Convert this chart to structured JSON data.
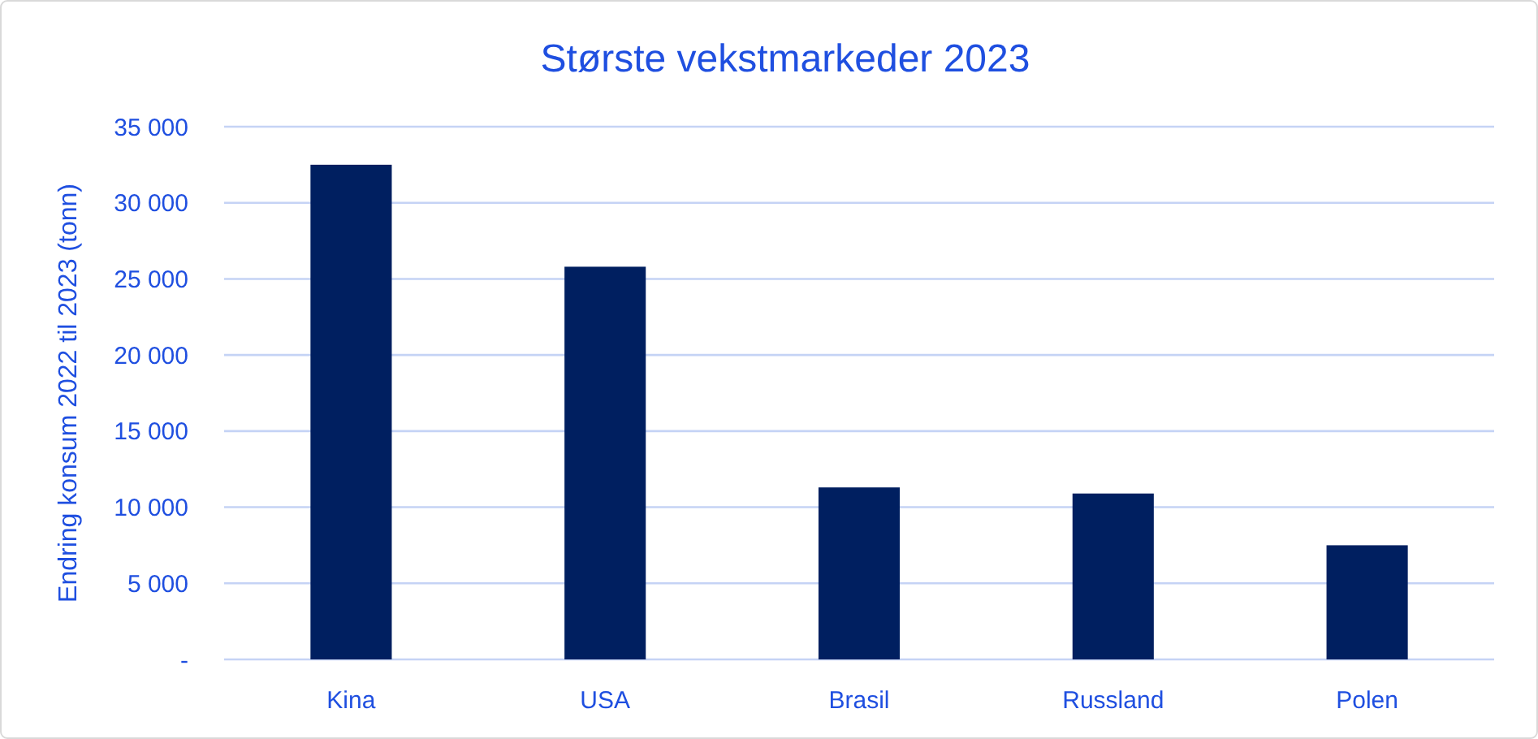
{
  "chart_data": {
    "type": "bar",
    "title": "Største vekstmarkeder 2023",
    "ylabel": "Endring konsum 2022 til 2023 (tonn)",
    "categories": [
      "Kina",
      "USA",
      "Brasil",
      "Russland",
      "Polen"
    ],
    "values": [
      32500,
      25800,
      11300,
      10900,
      7500
    ],
    "color": "#001f60",
    "ylim": [
      0,
      35000
    ],
    "yticks": [
      {
        "value": 0,
        "label": "-"
      },
      {
        "value": 5000,
        "label": "5 000"
      },
      {
        "value": 10000,
        "label": "10 000"
      },
      {
        "value": 15000,
        "label": "15 000"
      },
      {
        "value": 20000,
        "label": "20 000"
      },
      {
        "value": 25000,
        "label": "25 000"
      },
      {
        "value": 30000,
        "label": "30 000"
      },
      {
        "value": 35000,
        "label": "35 000"
      }
    ],
    "grid": "y"
  }
}
